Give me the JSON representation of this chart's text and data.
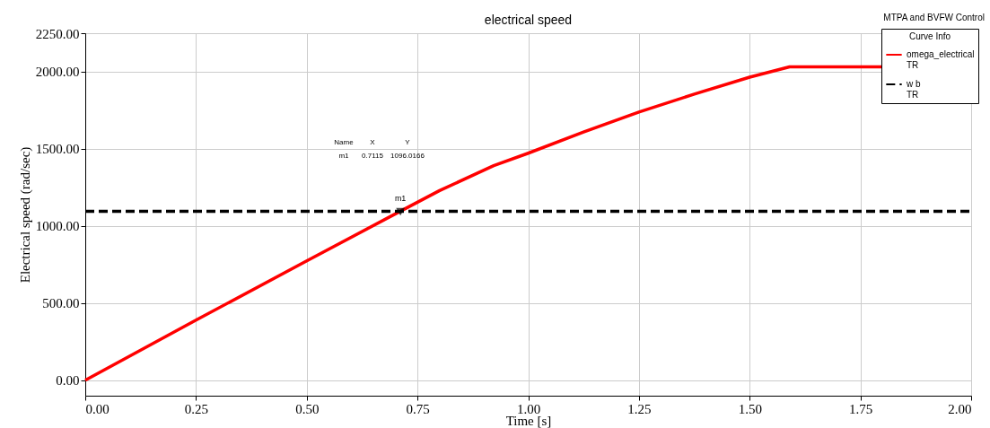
{
  "chart_data": {
    "type": "line",
    "title": "electrical speed",
    "subtitle": "MTPA and BVFW Control",
    "xlabel": "Time [s]",
    "ylabel": "Electrical speed (rad/sec)",
    "legend_title": "Curve Info",
    "xlim": [
      0,
      2
    ],
    "ylim": [
      -100,
      2250
    ],
    "xticks": [
      {
        "value": 0,
        "label": "0.00"
      },
      {
        "value": 0.25,
        "label": "0.25"
      },
      {
        "value": 0.5,
        "label": "0.50"
      },
      {
        "value": 0.75,
        "label": "0.75"
      },
      {
        "value": 1,
        "label": "1.00"
      },
      {
        "value": 1.25,
        "label": "1.25"
      },
      {
        "value": 1.5,
        "label": "1.50"
      },
      {
        "value": 1.75,
        "label": "1.75"
      },
      {
        "value": 2,
        "label": "2.00"
      }
    ],
    "yticks": [
      {
        "value": 0,
        "label": "0.00"
      },
      {
        "value": 500,
        "label": "500.00"
      },
      {
        "value": 1000,
        "label": "1000.00"
      },
      {
        "value": 1500,
        "label": "1500.00"
      },
      {
        "value": 2000,
        "label": "2000.00"
      },
      {
        "value": 2250,
        "label": "2250.00"
      }
    ],
    "grid": true,
    "legend": "top right",
    "marker": "none",
    "series": [
      {
        "name": "omega_electrical",
        "color": "#ff0000",
        "line_style": "solid",
        "x": [
          0,
          0.25,
          0.5,
          0.7115,
          0.8,
          0.922,
          1.0,
          1.125,
          1.25,
          1.375,
          1.5,
          1.59,
          1.8
        ],
        "values": [
          0,
          390,
          774,
          1096,
          1230,
          1391,
          1472,
          1610,
          1739,
          1855,
          1965,
          2032,
          2032
        ]
      },
      {
        "name": "w b",
        "color": "#000000",
        "line_style": "dashed",
        "x": [
          0,
          2
        ],
        "values": [
          1096,
          1096
        ]
      }
    ],
    "annotations": [
      {
        "text": "m1",
        "x": 0.7115,
        "y": 1096.0166
      },
      "Name",
      "X",
      "Y",
      "m1",
      "0.7115",
      "1096.0166",
      "TR",
      "TR"
    ]
  }
}
